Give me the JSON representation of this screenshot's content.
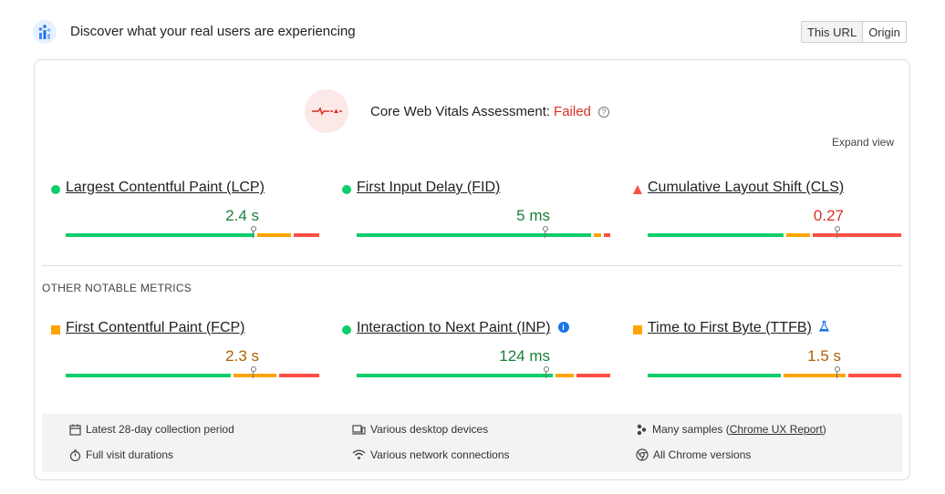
{
  "header": {
    "title": "Discover what your real users are experiencing",
    "toggle": [
      "This URL",
      "Origin"
    ]
  },
  "assessment": {
    "label": "Core Web Vitals Assessment:",
    "status": "Failed",
    "help": "?",
    "expand_label": "Expand view"
  },
  "core_metrics": [
    {
      "name": "Largest Contentful Paint (LCP)",
      "value": "2.4 s",
      "rating": "good"
    },
    {
      "name": "First Input Delay (FID)",
      "value": "5 ms",
      "rating": "good"
    },
    {
      "name": "Cumulative Layout Shift (CLS)",
      "value": "0.27",
      "rating": "poor"
    }
  ],
  "other_label": "OTHER NOTABLE METRICS",
  "other_metrics": [
    {
      "name": "First Contentful Paint (FCP)",
      "value": "2.3 s",
      "rating": "average"
    },
    {
      "name": "Interaction to Next Paint (INP)",
      "value": "124 ms",
      "rating": "good",
      "info": "i"
    },
    {
      "name": "Time to First Byte (TTFB)",
      "value": "1.5 s",
      "rating": "average"
    }
  ],
  "footer": {
    "period": "Latest 28-day collection period",
    "devices": "Various desktop devices",
    "samples_prefix": "Many samples (",
    "samples_link": "Chrome UX Report",
    "samples_suffix": ")",
    "durations": "Full visit durations",
    "network": "Various network connections",
    "versions": "All Chrome versions"
  },
  "colors": {
    "good": "#0cce6b",
    "average": "#ffa400",
    "poor": "#ff4e42",
    "failed_text": "#d93025"
  }
}
